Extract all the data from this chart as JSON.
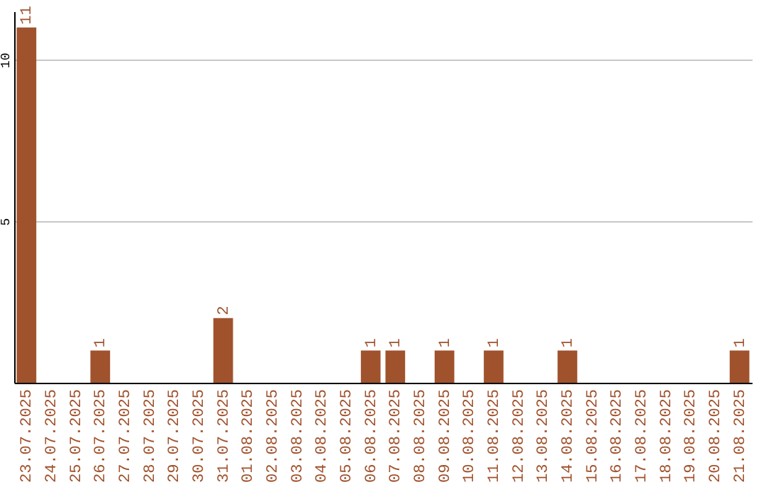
{
  "chart_data": {
    "type": "bar",
    "categories": [
      "23.07.2025",
      "24.07.2025",
      "25.07.2025",
      "26.07.2025",
      "27.07.2025",
      "28.07.2025",
      "29.07.2025",
      "30.07.2025",
      "31.07.2025",
      "01.08.2025",
      "02.08.2025",
      "03.08.2025",
      "04.08.2025",
      "05.08.2025",
      "06.08.2025",
      "07.08.2025",
      "08.08.2025",
      "09.08.2025",
      "10.08.2025",
      "11.08.2025",
      "12.08.2025",
      "13.08.2025",
      "14.08.2025",
      "15.08.2025",
      "16.08.2025",
      "17.08.2025",
      "18.08.2025",
      "19.08.2025",
      "20.08.2025",
      "21.08.2025"
    ],
    "values": [
      11,
      0,
      0,
      1,
      0,
      0,
      0,
      0,
      2,
      0,
      0,
      0,
      0,
      0,
      1,
      1,
      0,
      1,
      0,
      1,
      0,
      0,
      1,
      0,
      0,
      0,
      0,
      0,
      0,
      1
    ],
    "value_labels": [
      "11",
      null,
      null,
      "1",
      null,
      null,
      null,
      null,
      "2",
      null,
      null,
      null,
      null,
      null,
      "1",
      "1",
      null,
      "1",
      null,
      "1",
      null,
      null,
      "1",
      null,
      null,
      null,
      null,
      null,
      null,
      "1"
    ],
    "color": "#a0522d",
    "ylim": [
      0,
      11.5
    ],
    "yticks": [
      5,
      10
    ],
    "grid": "y"
  }
}
